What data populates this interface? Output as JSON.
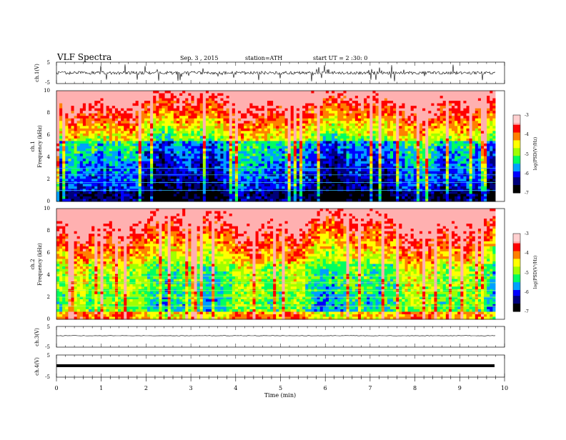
{
  "header": {
    "title": "VLF  Spectra",
    "date": "Sep. 3  , 2015",
    "station": "station=ATH",
    "start": "start  UT  =   2 :30: 0"
  },
  "chart_data": [
    {
      "type": "line",
      "name": "ch1-waveform",
      "ylabel": "ch.1(V)",
      "yticks": [
        "5",
        "-5"
      ],
      "ylim": [
        -5,
        5
      ],
      "xlim": [
        0,
        10
      ],
      "baseline_y": 0,
      "noise_amplitude_v": 1.2
    },
    {
      "type": "heatmap",
      "name": "ch1-spectrogram",
      "ylabel_channel": "ch.1",
      "ylabel": "Frequency  (kHz)",
      "yticks": [
        "0",
        "2",
        "4",
        "6",
        "8",
        "10"
      ],
      "ylim": [
        0,
        10
      ],
      "xlim": [
        0,
        9.8
      ],
      "colorbar": {
        "label": "log(PSD(V²/Hz)",
        "ticks": [
          "-3",
          "-4",
          "-5",
          "-6",
          "-7"
        ],
        "range": [
          -7,
          -3
        ]
      }
    },
    {
      "type": "heatmap",
      "name": "ch2-spectrogram",
      "ylabel_channel": "ch.2",
      "ylabel": "Frequency  (kHz)",
      "yticks": [
        "0",
        "2",
        "4",
        "6",
        "8",
        "10"
      ],
      "ylim": [
        0,
        10
      ],
      "xlim": [
        0,
        9.8
      ],
      "colorbar": {
        "label": "log(PSD(V²/Hz)",
        "ticks": [
          "-3",
          "-4",
          "-5",
          "-6",
          "-7"
        ],
        "range": [
          -7,
          -3
        ]
      }
    },
    {
      "type": "line",
      "name": "ch3-waveform",
      "ylabel": "ch.3(V)",
      "yticks": [
        "5",
        "-5"
      ],
      "ylim": [
        -5,
        5
      ],
      "baseline_y": 0
    },
    {
      "type": "line",
      "name": "ch4-waveform",
      "ylabel": "ch.4(V)",
      "yticks": [
        "5",
        "-5"
      ],
      "ylim": [
        -5,
        5
      ],
      "baseline_y": 0
    }
  ],
  "xaxis": {
    "label": "Time  (min)",
    "ticks": [
      "0",
      "1",
      "2",
      "3",
      "4",
      "5",
      "6",
      "7",
      "8",
      "9",
      "10"
    ],
    "range": [
      0,
      10
    ]
  },
  "colors": {
    "background": "#ffffff",
    "trace": "#000000",
    "palette": [
      "#000000",
      "#00007a",
      "#0000ff",
      "#00a0ff",
      "#00e0e0",
      "#00ff60",
      "#a0ff00",
      "#ffff00",
      "#ff8000",
      "#ff0000",
      "#ffb0b0",
      "#ffffff"
    ]
  }
}
